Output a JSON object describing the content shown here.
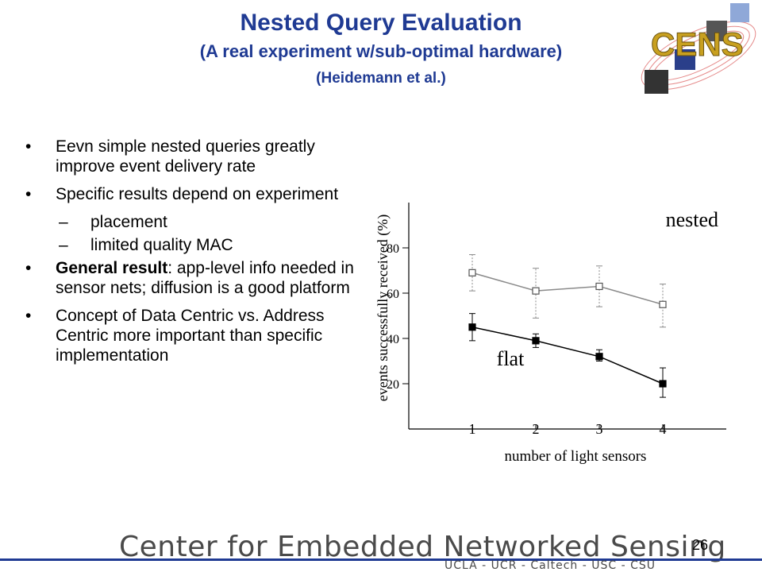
{
  "slide": {
    "title": "Nested Query Evaluation",
    "subtitle": "(A real experiment w/sub-optimal hardware)",
    "citation": "(Heidemann et al.)",
    "page_number": "26"
  },
  "bullets": [
    {
      "marker": "•",
      "bold": "",
      "text": "Eevn simple nested queries greatly improve event delivery rate"
    },
    {
      "marker": "•",
      "bold": "",
      "text": "Specific results depend on experiment"
    },
    {
      "marker": "–",
      "bold": "",
      "text": "placement",
      "sub": true
    },
    {
      "marker": "–",
      "bold": "",
      "text": "limited quality MAC",
      "sub": true
    },
    {
      "marker": "•",
      "bold": "General result",
      "text": ": app-level info needed in sensor nets; diffusion is a good platform"
    },
    {
      "marker": "•",
      "bold": "",
      "text": "Concept of Data Centric vs. Address Centric more important than specific implementation"
    }
  ],
  "footer": {
    "text": "Center for Embedded Networked Sensing",
    "institutions": "UCLA - UCR - Caltech - USC - CSU"
  },
  "logo": {
    "text": "CENS",
    "accent": "#c8a020"
  },
  "chart_data": {
    "type": "line",
    "xlabel": "number of light sensors",
    "ylabel": "events successfully received (%)",
    "xlim": [
      0,
      5
    ],
    "ylim": [
      0,
      100
    ],
    "x_ticks": [
      1,
      2,
      3,
      4
    ],
    "y_ticks": [
      20,
      40,
      60,
      80
    ],
    "series": [
      {
        "name": "nested",
        "marker": "open-square",
        "color": "#8a8a8a",
        "x": [
          1,
          2,
          3,
          4
        ],
        "y": [
          69,
          61,
          63,
          55
        ],
        "err_low": [
          61,
          49,
          54,
          45
        ],
        "err_high": [
          77,
          71,
          72,
          64
        ]
      },
      {
        "name": "flat",
        "marker": "filled-square",
        "color": "#000000",
        "x": [
          1,
          2,
          3,
          4
        ],
        "y": [
          45,
          39,
          32,
          20
        ],
        "err_low": [
          39,
          36,
          30,
          14
        ],
        "err_high": [
          51,
          42,
          35,
          27
        ]
      }
    ]
  }
}
